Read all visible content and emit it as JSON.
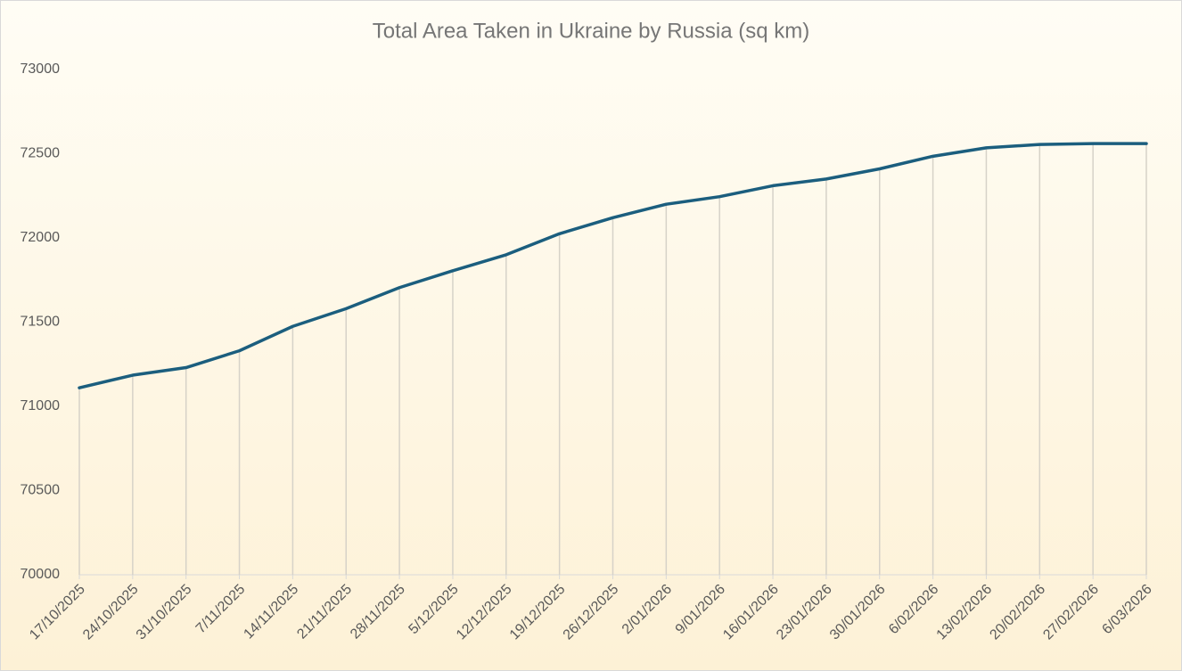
{
  "chart_data": {
    "type": "line",
    "title": "Total Area Taken in Ukraine by Russia (sq km)",
    "categories": [
      "17/10/2025",
      "24/10/2025",
      "31/10/2025",
      "7/11/2025",
      "14/11/2025",
      "21/11/2025",
      "28/11/2025",
      "5/12/2025",
      "12/12/2025",
      "19/12/2025",
      "26/12/2025",
      "2/01/2026",
      "9/01/2026",
      "16/01/2026",
      "23/01/2026",
      "30/01/2026",
      "6/02/2026",
      "13/02/2026",
      "20/02/2026",
      "27/02/2026",
      "6/03/2026"
    ],
    "values": [
      71110,
      71185,
      71230,
      71330,
      71475,
      71580,
      71705,
      71805,
      71900,
      72025,
      72120,
      72200,
      72245,
      72310,
      72350,
      72410,
      72485,
      72535,
      72555,
      72560,
      72560
    ],
    "color": "#1b5e7e",
    "drop_lines": true,
    "grid": false,
    "ylim": [
      70000,
      73000
    ],
    "yticks": [
      70000,
      70500,
      71000,
      71500,
      72000,
      72500,
      73000
    ]
  }
}
